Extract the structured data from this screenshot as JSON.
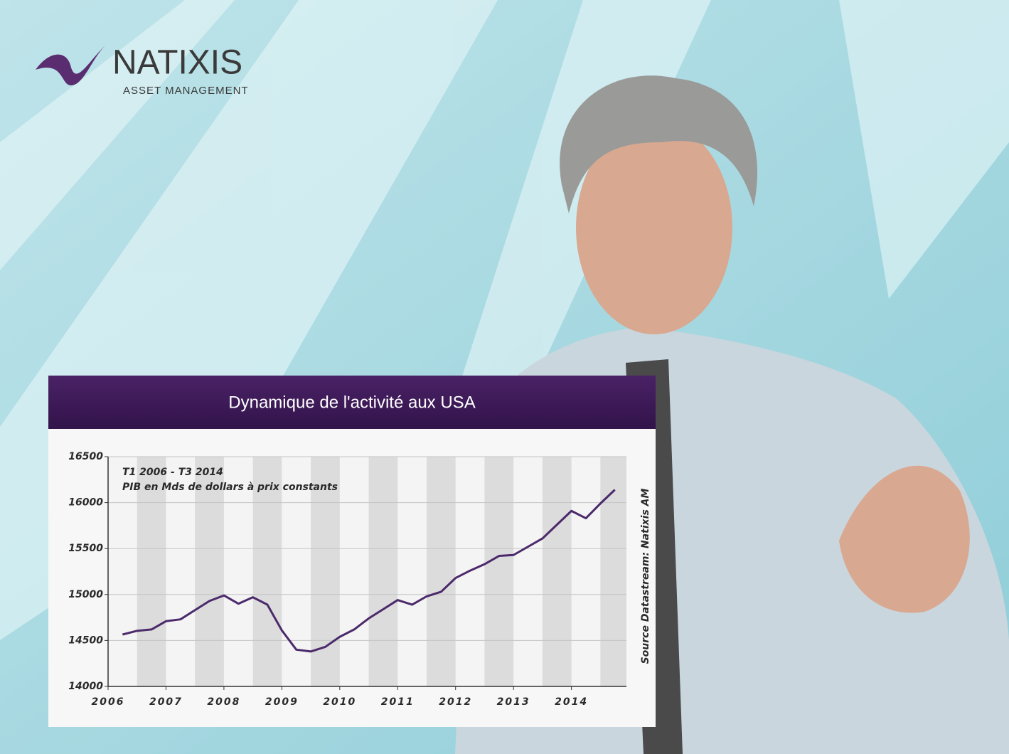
{
  "logo": {
    "name": "NATIXIS",
    "tagline": "ASSET MANAGEMENT"
  },
  "chart_data": {
    "type": "line",
    "title": "Dynamique de l'activité aux USA",
    "subtitle": [
      "T1 2006 - T3 2014",
      "PIB en Mds de dollars à prix constants"
    ],
    "source": "Source Datastream: Natixis AM",
    "x": [
      2006.25,
      2006.5,
      2006.75,
      2007,
      2007.25,
      2007.5,
      2007.75,
      2008,
      2008.25,
      2008.5,
      2008.75,
      2009,
      2009.25,
      2009.5,
      2009.75,
      2010,
      2010.25,
      2010.5,
      2010.75,
      2011,
      2011.25,
      2011.5,
      2011.75,
      2012,
      2012.25,
      2012.5,
      2012.75,
      2013,
      2013.25,
      2013.5,
      2013.75,
      2014,
      2014.25,
      2014.5,
      2014.75
    ],
    "series": [
      {
        "color": "#4b2a6b",
        "values": [
          14565,
          14605,
          14620,
          14710,
          14730,
          14830,
          14930,
          14990,
          14900,
          14970,
          14890,
          14610,
          14400,
          14380,
          14430,
          14540,
          14620,
          14740,
          14840,
          14940,
          14890,
          14980,
          15030,
          15180,
          15260,
          15330,
          15420,
          15430,
          15520,
          15610,
          15760,
          15910,
          15830,
          15990,
          16140
        ]
      }
    ],
    "xlim": [
      2006,
      2014.95
    ],
    "xticks": [
      2006,
      2007,
      2008,
      2009,
      2010,
      2011,
      2012,
      2013,
      2014
    ],
    "ylim": [
      14000,
      16500
    ],
    "yticks": [
      14000,
      14500,
      15000,
      15500,
      16000,
      16500
    ],
    "grid": true
  }
}
